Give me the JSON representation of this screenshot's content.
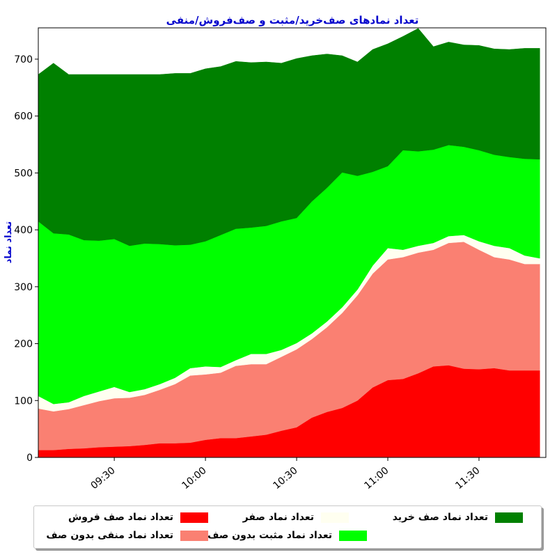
{
  "chart_data": {
    "type": "area",
    "stacked": true,
    "title": "تعداد نمادهای صف‌خرید/مثبت و صف‌فروش/منفی",
    "xlabel": "",
    "ylabel": "تعداد نماد",
    "ylim": [
      0,
      755
    ],
    "yticks": [
      0,
      100,
      200,
      300,
      400,
      500,
      600,
      700
    ],
    "xlim": [
      "09:05",
      "11:52"
    ],
    "xticks": [
      "09:30",
      "10:00",
      "10:30",
      "11:00",
      "11:30"
    ],
    "grid": false,
    "legend_position": "bottom",
    "x": [
      "09:05",
      "09:10",
      "09:15",
      "09:20",
      "09:25",
      "09:30",
      "09:35",
      "09:40",
      "09:45",
      "09:50",
      "09:55",
      "10:00",
      "10:05",
      "10:10",
      "10:15",
      "10:20",
      "10:25",
      "10:30",
      "10:35",
      "10:40",
      "10:45",
      "10:50",
      "10:55",
      "11:00",
      "11:05",
      "11:10",
      "11:15",
      "11:20",
      "11:25",
      "11:30",
      "11:35",
      "11:40",
      "11:45",
      "11:50"
    ],
    "series": [
      {
        "name": "تعداد نماد صف فروش",
        "color": "#ff0000",
        "values": [
          13,
          13,
          15,
          16,
          18,
          19,
          20,
          22,
          25,
          25,
          26,
          31,
          34,
          34,
          37,
          40,
          47,
          53,
          70,
          80,
          87,
          100,
          123,
          136,
          138,
          148,
          160,
          162,
          156,
          155,
          157,
          153,
          153,
          153
        ]
      },
      {
        "name": "تعداد نماد منفی بدون صف",
        "color": "#fa8072",
        "values": [
          73,
          68,
          70,
          76,
          81,
          85,
          85,
          88,
          94,
          104,
          118,
          115,
          115,
          127,
          127,
          124,
          130,
          137,
          138,
          149,
          167,
          185,
          200,
          212,
          214,
          212,
          205,
          215,
          223,
          210,
          195,
          195,
          187,
          187
        ]
      },
      {
        "name": "تعداد نماد صفر",
        "color": "#fffff0",
        "values": [
          22,
          13,
          12,
          16,
          17,
          20,
          10,
          10,
          10,
          11,
          13,
          14,
          10,
          10,
          18,
          18,
          12,
          11,
          10,
          10,
          10,
          10,
          14,
          20,
          13,
          12,
          12,
          12,
          12,
          15,
          20,
          20,
          15,
          10
        ]
      },
      {
        "name": "تعداد نماد مثبت بدون صف",
        "color": "#00ff00",
        "values": [
          307,
          300,
          295,
          274,
          265,
          260,
          257,
          256,
          246,
          233,
          217,
          220,
          232,
          231,
          222,
          225,
          226,
          220,
          232,
          235,
          237,
          200,
          165,
          144,
          175,
          166,
          164,
          160,
          155,
          160,
          160,
          160,
          170,
          174
        ]
      },
      {
        "name": "تعداد نماد صف خرید",
        "color": "#008000",
        "values": [
          258,
          299,
          281,
          291,
          292,
          289,
          301,
          297,
          298,
          302,
          301,
          303,
          296,
          294,
          290,
          288,
          278,
          280,
          256,
          235,
          205,
          200,
          215,
          215,
          200,
          216,
          181,
          181,
          179,
          184,
          186,
          189,
          194,
          195
        ]
      }
    ]
  }
}
